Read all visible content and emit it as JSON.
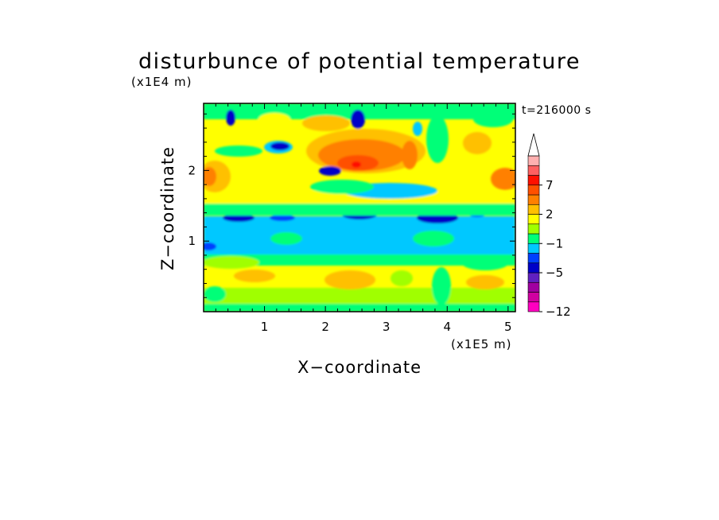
{
  "chart_data": {
    "type": "heatmap",
    "title": "disturbunce of potential temperature",
    "time_label": "t=216000 s",
    "xlabel": "X−coordinate",
    "ylabel": "Z−coordinate",
    "x_unit": "(x1E5 m)",
    "y_unit": "(x1E4 m)",
    "xlim": [
      0,
      5.12
    ],
    "ylim": [
      0,
      2.95
    ],
    "xticks": [
      "1",
      "2",
      "3",
      "4",
      "5"
    ],
    "yticks": [
      "1",
      "2"
    ],
    "colorbar": {
      "levels": [
        -12,
        -10,
        -8,
        -6,
        -5,
        -4,
        -3,
        -1,
        0,
        1,
        2,
        3,
        5,
        7,
        8,
        9,
        10
      ],
      "tick_labels": [
        "−12",
        "−5",
        "−1",
        "2",
        "7"
      ],
      "tick_values": [
        -12,
        -5,
        -1,
        2,
        7
      ],
      "colors": [
        "#ff00c0",
        "#d000a0",
        "#a000a0",
        "#6020c0",
        "#0000c8",
        "#0040ff",
        "#00c8ff",
        "#00ff78",
        "#a0ff00",
        "#ffff00",
        "#ffc000",
        "#ff8000",
        "#ff5000",
        "#ff1000",
        "#ff6060",
        "#ffb0b0"
      ],
      "extend": "max"
    },
    "bands": [
      {
        "z": [
          0.0,
          0.8
        ],
        "range": "0 to 2",
        "dominant": "yellow/orange"
      },
      {
        "z": [
          0.8,
          1.3
        ],
        "range": "-1 to 0",
        "dominant": "cyan/green"
      },
      {
        "z": [
          1.3,
          1.5
        ],
        "range": "-5 to -1",
        "dominant": "blue/cyan"
      },
      {
        "z": [
          1.5,
          2.95
        ],
        "range": "-5 to 7",
        "dominant": "mixed yellow/orange with blue patches"
      }
    ],
    "features": [
      {
        "x": 2.5,
        "z": 2.1,
        "value": 7,
        "kind": "max"
      },
      {
        "x": 0.4,
        "z": 1.95,
        "value": 3,
        "kind": "max"
      },
      {
        "x": 0.4,
        "z": 2.75,
        "value": -5,
        "kind": "min"
      },
      {
        "x": 1.15,
        "z": 2.4,
        "value": -5,
        "kind": "min"
      },
      {
        "x": 2.55,
        "z": 2.7,
        "value": -5,
        "kind": "min"
      },
      {
        "x": 1.1,
        "z": 1.35,
        "value": -4,
        "kind": "min"
      },
      {
        "x": 2.5,
        "z": 1.35,
        "value": -4,
        "kind": "min"
      },
      {
        "x": 3.85,
        "z": 1.35,
        "value": -5,
        "kind": "min"
      }
    ]
  }
}
